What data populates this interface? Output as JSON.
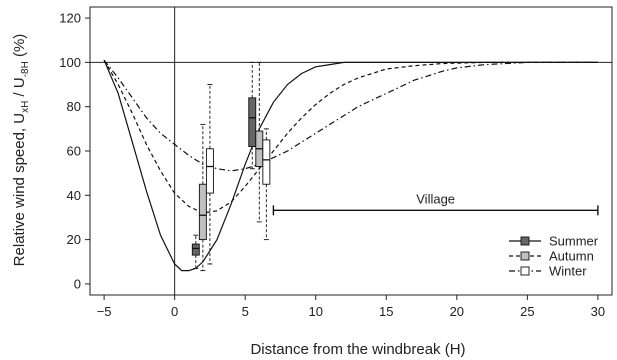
{
  "chart_data": {
    "type": "line",
    "xlabel": "Distance from the windbreak (H)",
    "ylabel_parts": {
      "main": "Relative wind speed, U",
      "sub1": "xH",
      "mid": " / U",
      "sub2": "-8H",
      "end": " (%)"
    },
    "xlim": [
      -6,
      31
    ],
    "ylim": [
      -5,
      125
    ],
    "xticks": [
      -5,
      0,
      5,
      10,
      15,
      20,
      25,
      30
    ],
    "yticks": [
      0,
      20,
      40,
      60,
      80,
      100,
      120
    ],
    "reference_lines": {
      "x": 0,
      "y": 100
    },
    "grid": false,
    "legend_position": "bottom-right",
    "series": [
      {
        "name": "Summer",
        "style": "solid",
        "box_fill": "#666666",
        "points": [
          [
            -5,
            101
          ],
          [
            -4,
            86
          ],
          [
            -3,
            64
          ],
          [
            -2,
            42
          ],
          [
            -1,
            22
          ],
          [
            0,
            9
          ],
          [
            0.5,
            6
          ],
          [
            1,
            6
          ],
          [
            1.5,
            7
          ],
          [
            2,
            10
          ],
          [
            3,
            20
          ],
          [
            4,
            36
          ],
          [
            5,
            54
          ],
          [
            6,
            70
          ],
          [
            7,
            82
          ],
          [
            8,
            90
          ],
          [
            9,
            95
          ],
          [
            10,
            98
          ],
          [
            11,
            99
          ],
          [
            12,
            100
          ],
          [
            15,
            100
          ],
          [
            20,
            100
          ],
          [
            25,
            100
          ],
          [
            30,
            100
          ]
        ],
        "boxes": [
          {
            "x": 1.5,
            "whisker_low": 7,
            "q1": 13,
            "median": 16,
            "q3": 18,
            "whisker_high": 22
          },
          {
            "x": 5.5,
            "whisker_low": 52,
            "q1": 62,
            "median": 75,
            "q3": 84,
            "whisker_high": 100
          }
        ]
      },
      {
        "name": "Autumn",
        "style": "dashed",
        "box_fill": "#c0c0c0",
        "points": [
          [
            -5,
            101
          ],
          [
            -4,
            90
          ],
          [
            -3,
            77
          ],
          [
            -2,
            63
          ],
          [
            -1,
            51
          ],
          [
            0,
            41
          ],
          [
            1,
            35
          ],
          [
            2,
            32
          ],
          [
            3,
            33
          ],
          [
            4,
            37
          ],
          [
            5,
            44
          ],
          [
            6,
            52
          ],
          [
            7,
            60
          ],
          [
            8,
            68
          ],
          [
            9,
            75
          ],
          [
            10,
            81
          ],
          [
            11,
            86
          ],
          [
            12,
            90
          ],
          [
            13,
            93
          ],
          [
            14,
            95
          ],
          [
            15,
            97
          ],
          [
            17,
            98.5
          ],
          [
            19,
            99.5
          ],
          [
            22,
            100
          ],
          [
            25,
            100
          ],
          [
            30,
            100
          ]
        ],
        "boxes": [
          {
            "x": 2.0,
            "whisker_low": 6,
            "q1": 20,
            "median": 31,
            "q3": 45,
            "whisker_high": 72
          },
          {
            "x": 6.0,
            "whisker_low": 28,
            "q1": 53,
            "median": 61,
            "q3": 69,
            "whisker_high": 100
          }
        ]
      },
      {
        "name": "Winter",
        "style": "dashdot",
        "box_fill": "#ffffff",
        "points": [
          [
            -5,
            101
          ],
          [
            -4,
            93
          ],
          [
            -3,
            84
          ],
          [
            -2,
            75
          ],
          [
            -1,
            68
          ],
          [
            0,
            63
          ],
          [
            1,
            58
          ],
          [
            2,
            54
          ],
          [
            3,
            52
          ],
          [
            4,
            51
          ],
          [
            5,
            52
          ],
          [
            6,
            54
          ],
          [
            7,
            57
          ],
          [
            8,
            60
          ],
          [
            9,
            64
          ],
          [
            10,
            68
          ],
          [
            11,
            72
          ],
          [
            12,
            76
          ],
          [
            13,
            80
          ],
          [
            14,
            83
          ],
          [
            15,
            86
          ],
          [
            16,
            89
          ],
          [
            17,
            92
          ],
          [
            18,
            94
          ],
          [
            19,
            96
          ],
          [
            20,
            97.5
          ],
          [
            22,
            99
          ],
          [
            25,
            100
          ],
          [
            30,
            100
          ]
        ],
        "boxes": [
          {
            "x": 2.5,
            "whisker_low": 9,
            "q1": 41,
            "median": 53,
            "q3": 61,
            "whisker_high": 90
          },
          {
            "x": 6.5,
            "whisker_low": 20,
            "q1": 45,
            "median": 56,
            "q3": 65,
            "whisker_high": 70
          }
        ]
      }
    ],
    "annotation": {
      "label": "Village",
      "x_start": 7,
      "x_end": 30,
      "y": 40
    }
  }
}
